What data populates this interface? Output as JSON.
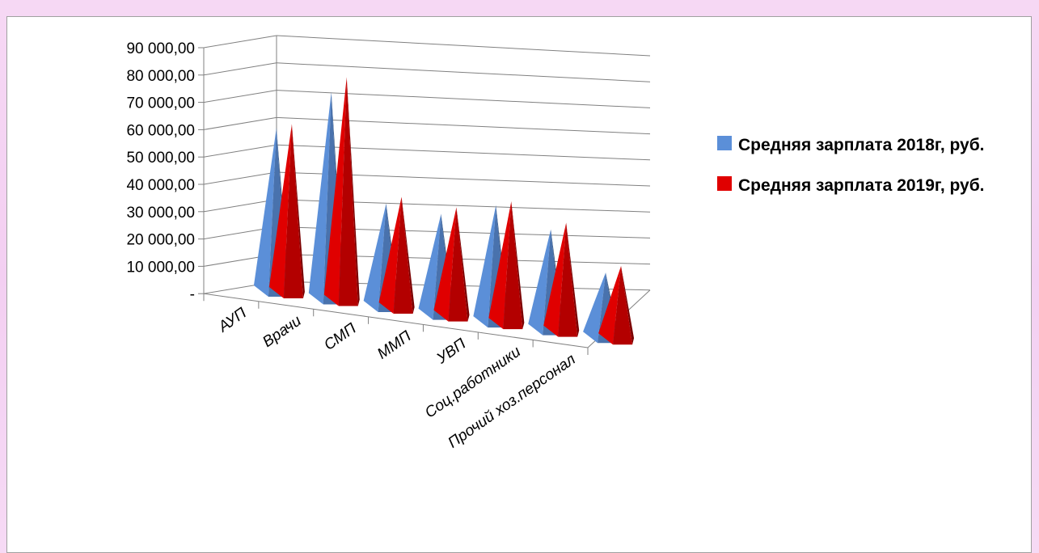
{
  "chart_data": {
    "type": "bar",
    "style": "3d-pyramid",
    "categories": [
      "АУП",
      "Врачи",
      "СМП",
      "ММП",
      "УВП",
      "Соц.работники",
      "Прочий хоз.персонал"
    ],
    "series": [
      {
        "name": "Средняя зарплата 2018г, руб.",
        "color": "#5b8fd8",
        "values": [
          60000,
          76000,
          38000,
          37000,
          43000,
          37000,
          24000
        ]
      },
      {
        "name": "Средняя зарплата 2019г, руб.",
        "color": "#e00000",
        "values": [
          62000,
          82000,
          41000,
          40000,
          45000,
          40000,
          27000
        ]
      }
    ],
    "y_ticks": [
      "90 000,00",
      "80 000,00",
      "70 000,00",
      "60 000,00",
      "50 000,00",
      "40 000,00",
      "30 000,00",
      "20 000,00",
      "10 000,00",
      "-"
    ],
    "ylim": [
      0,
      90000
    ],
    "grid": true,
    "legend_position": "right"
  }
}
